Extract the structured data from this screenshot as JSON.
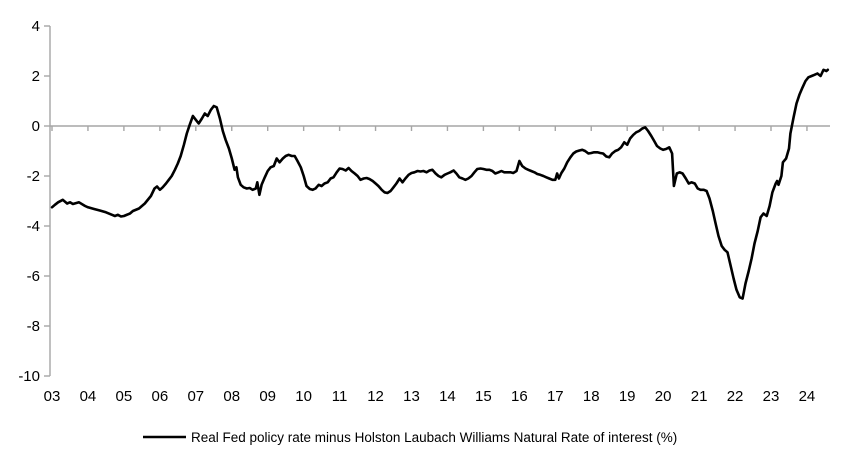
{
  "colors": {
    "background": "#ffffff",
    "axis": "#a6a6a6",
    "line": "#000000",
    "text": "#000000"
  },
  "chart_data": {
    "type": "line",
    "title": "",
    "xlabel": "",
    "ylabel": "",
    "legend": "Real Fed policy rate minus Holston Laubach Williams Natural Rate of interest (%)",
    "legend_position": "bottom-center",
    "grid": "zero-line-only",
    "ylim": [
      -10,
      4
    ],
    "y_ticks": [
      4,
      2,
      0,
      -2,
      -4,
      -6,
      -8,
      -10
    ],
    "x_tick_labels": [
      "03",
      "04",
      "05",
      "06",
      "07",
      "08",
      "09",
      "10",
      "11",
      "12",
      "13",
      "14",
      "15",
      "16",
      "17",
      "18",
      "19",
      "20",
      "21",
      "22",
      "23",
      "24"
    ],
    "x_tick_years": [
      2003,
      2004,
      2005,
      2006,
      2007,
      2008,
      2009,
      2010,
      2011,
      2012,
      2013,
      2014,
      2015,
      2016,
      2017,
      2018,
      2019,
      2020,
      2021,
      2022,
      2023,
      2024
    ],
    "series": [
      {
        "name": "Real Fed policy rate minus Holston Laubach Williams Natural Rate of interest (%)",
        "points": [
          [
            2003.0,
            -3.25
          ],
          [
            2003.08,
            -3.15
          ],
          [
            2003.17,
            -3.05
          ],
          [
            2003.3,
            -2.95
          ],
          [
            2003.42,
            -3.1
          ],
          [
            2003.5,
            -3.05
          ],
          [
            2003.58,
            -3.12
          ],
          [
            2003.75,
            -3.05
          ],
          [
            2003.92,
            -3.2
          ],
          [
            2004.0,
            -3.25
          ],
          [
            2004.17,
            -3.32
          ],
          [
            2004.33,
            -3.38
          ],
          [
            2004.5,
            -3.45
          ],
          [
            2004.67,
            -3.55
          ],
          [
            2004.75,
            -3.6
          ],
          [
            2004.83,
            -3.55
          ],
          [
            2004.92,
            -3.62
          ],
          [
            2005.0,
            -3.6
          ],
          [
            2005.17,
            -3.5
          ],
          [
            2005.25,
            -3.4
          ],
          [
            2005.42,
            -3.3
          ],
          [
            2005.58,
            -3.1
          ],
          [
            2005.75,
            -2.8
          ],
          [
            2005.85,
            -2.5
          ],
          [
            2005.92,
            -2.42
          ],
          [
            2006.0,
            -2.55
          ],
          [
            2006.08,
            -2.45
          ],
          [
            2006.17,
            -2.3
          ],
          [
            2006.25,
            -2.15
          ],
          [
            2006.33,
            -2.0
          ],
          [
            2006.42,
            -1.75
          ],
          [
            2006.5,
            -1.5
          ],
          [
            2006.58,
            -1.2
          ],
          [
            2006.67,
            -0.75
          ],
          [
            2006.75,
            -0.3
          ],
          [
            2006.83,
            0.05
          ],
          [
            2006.92,
            0.4
          ],
          [
            2007.0,
            0.25
          ],
          [
            2007.08,
            0.1
          ],
          [
            2007.17,
            0.3
          ],
          [
            2007.25,
            0.5
          ],
          [
            2007.33,
            0.4
          ],
          [
            2007.42,
            0.65
          ],
          [
            2007.5,
            0.8
          ],
          [
            2007.58,
            0.75
          ],
          [
            2007.67,
            0.3
          ],
          [
            2007.75,
            -0.2
          ],
          [
            2007.83,
            -0.55
          ],
          [
            2007.92,
            -0.9
          ],
          [
            2008.0,
            -1.3
          ],
          [
            2008.08,
            -1.75
          ],
          [
            2008.13,
            -1.65
          ],
          [
            2008.17,
            -2.05
          ],
          [
            2008.25,
            -2.35
          ],
          [
            2008.33,
            -2.45
          ],
          [
            2008.42,
            -2.5
          ],
          [
            2008.5,
            -2.48
          ],
          [
            2008.58,
            -2.55
          ],
          [
            2008.67,
            -2.5
          ],
          [
            2008.71,
            -2.25
          ],
          [
            2008.77,
            -2.75
          ],
          [
            2008.83,
            -2.35
          ],
          [
            2008.92,
            -2.05
          ],
          [
            2009.0,
            -1.8
          ],
          [
            2009.08,
            -1.65
          ],
          [
            2009.17,
            -1.6
          ],
          [
            2009.25,
            -1.3
          ],
          [
            2009.33,
            -1.45
          ],
          [
            2009.42,
            -1.3
          ],
          [
            2009.5,
            -1.2
          ],
          [
            2009.58,
            -1.15
          ],
          [
            2009.67,
            -1.2
          ],
          [
            2009.75,
            -1.2
          ],
          [
            2009.83,
            -1.4
          ],
          [
            2009.92,
            -1.65
          ],
          [
            2010.0,
            -2.0
          ],
          [
            2010.08,
            -2.4
          ],
          [
            2010.17,
            -2.52
          ],
          [
            2010.25,
            -2.55
          ],
          [
            2010.33,
            -2.5
          ],
          [
            2010.42,
            -2.35
          ],
          [
            2010.5,
            -2.4
          ],
          [
            2010.58,
            -2.3
          ],
          [
            2010.67,
            -2.25
          ],
          [
            2010.75,
            -2.1
          ],
          [
            2010.83,
            -2.05
          ],
          [
            2010.92,
            -1.85
          ],
          [
            2011.0,
            -1.7
          ],
          [
            2011.08,
            -1.72
          ],
          [
            2011.17,
            -1.78
          ],
          [
            2011.25,
            -1.68
          ],
          [
            2011.33,
            -1.8
          ],
          [
            2011.42,
            -1.9
          ],
          [
            2011.5,
            -2.0
          ],
          [
            2011.58,
            -2.15
          ],
          [
            2011.67,
            -2.1
          ],
          [
            2011.75,
            -2.08
          ],
          [
            2011.83,
            -2.12
          ],
          [
            2011.92,
            -2.2
          ],
          [
            2012.0,
            -2.3
          ],
          [
            2012.08,
            -2.4
          ],
          [
            2012.17,
            -2.55
          ],
          [
            2012.25,
            -2.65
          ],
          [
            2012.33,
            -2.68
          ],
          [
            2012.42,
            -2.6
          ],
          [
            2012.5,
            -2.45
          ],
          [
            2012.58,
            -2.3
          ],
          [
            2012.67,
            -2.1
          ],
          [
            2012.75,
            -2.25
          ],
          [
            2012.83,
            -2.1
          ],
          [
            2012.92,
            -1.95
          ],
          [
            2013.0,
            -1.88
          ],
          [
            2013.08,
            -1.85
          ],
          [
            2013.17,
            -1.8
          ],
          [
            2013.25,
            -1.82
          ],
          [
            2013.33,
            -1.8
          ],
          [
            2013.42,
            -1.85
          ],
          [
            2013.5,
            -1.78
          ],
          [
            2013.58,
            -1.75
          ],
          [
            2013.67,
            -1.9
          ],
          [
            2013.75,
            -2.0
          ],
          [
            2013.83,
            -2.05
          ],
          [
            2013.92,
            -1.95
          ],
          [
            2014.0,
            -1.9
          ],
          [
            2014.08,
            -1.85
          ],
          [
            2014.17,
            -1.78
          ],
          [
            2014.25,
            -1.9
          ],
          [
            2014.33,
            -2.05
          ],
          [
            2014.42,
            -2.1
          ],
          [
            2014.5,
            -2.15
          ],
          [
            2014.58,
            -2.1
          ],
          [
            2014.67,
            -2.0
          ],
          [
            2014.75,
            -1.85
          ],
          [
            2014.83,
            -1.72
          ],
          [
            2014.92,
            -1.7
          ],
          [
            2015.0,
            -1.72
          ],
          [
            2015.08,
            -1.75
          ],
          [
            2015.17,
            -1.75
          ],
          [
            2015.25,
            -1.8
          ],
          [
            2015.33,
            -1.9
          ],
          [
            2015.42,
            -1.85
          ],
          [
            2015.5,
            -1.8
          ],
          [
            2015.58,
            -1.85
          ],
          [
            2015.67,
            -1.85
          ],
          [
            2015.75,
            -1.85
          ],
          [
            2015.83,
            -1.88
          ],
          [
            2015.92,
            -1.8
          ],
          [
            2016.0,
            -1.4
          ],
          [
            2016.08,
            -1.6
          ],
          [
            2016.17,
            -1.7
          ],
          [
            2016.25,
            -1.75
          ],
          [
            2016.33,
            -1.8
          ],
          [
            2016.42,
            -1.85
          ],
          [
            2016.5,
            -1.92
          ],
          [
            2016.58,
            -1.95
          ],
          [
            2016.67,
            -2.0
          ],
          [
            2016.75,
            -2.05
          ],
          [
            2016.83,
            -2.1
          ],
          [
            2016.92,
            -2.15
          ],
          [
            2017.0,
            -2.15
          ],
          [
            2017.05,
            -1.9
          ],
          [
            2017.1,
            -2.1
          ],
          [
            2017.17,
            -1.88
          ],
          [
            2017.25,
            -1.7
          ],
          [
            2017.33,
            -1.45
          ],
          [
            2017.42,
            -1.25
          ],
          [
            2017.5,
            -1.1
          ],
          [
            2017.58,
            -1.02
          ],
          [
            2017.67,
            -0.98
          ],
          [
            2017.75,
            -0.95
          ],
          [
            2017.83,
            -1.0
          ],
          [
            2017.92,
            -1.1
          ],
          [
            2018.0,
            -1.08
          ],
          [
            2018.08,
            -1.05
          ],
          [
            2018.17,
            -1.05
          ],
          [
            2018.25,
            -1.08
          ],
          [
            2018.33,
            -1.1
          ],
          [
            2018.42,
            -1.22
          ],
          [
            2018.5,
            -1.25
          ],
          [
            2018.58,
            -1.1
          ],
          [
            2018.67,
            -1.0
          ],
          [
            2018.75,
            -0.95
          ],
          [
            2018.83,
            -0.85
          ],
          [
            2018.92,
            -0.65
          ],
          [
            2019.0,
            -0.75
          ],
          [
            2019.08,
            -0.5
          ],
          [
            2019.17,
            -0.35
          ],
          [
            2019.25,
            -0.25
          ],
          [
            2019.33,
            -0.2
          ],
          [
            2019.42,
            -0.1
          ],
          [
            2019.5,
            -0.05
          ],
          [
            2019.58,
            -0.2
          ],
          [
            2019.67,
            -0.4
          ],
          [
            2019.75,
            -0.6
          ],
          [
            2019.83,
            -0.8
          ],
          [
            2019.92,
            -0.9
          ],
          [
            2020.0,
            -0.95
          ],
          [
            2020.08,
            -0.92
          ],
          [
            2020.17,
            -0.85
          ],
          [
            2020.25,
            -1.1
          ],
          [
            2020.3,
            -2.4
          ],
          [
            2020.38,
            -1.9
          ],
          [
            2020.46,
            -1.85
          ],
          [
            2020.54,
            -1.9
          ],
          [
            2020.63,
            -2.1
          ],
          [
            2020.71,
            -2.3
          ],
          [
            2020.79,
            -2.25
          ],
          [
            2020.88,
            -2.3
          ],
          [
            2020.96,
            -2.5
          ],
          [
            2021.04,
            -2.55
          ],
          [
            2021.13,
            -2.55
          ],
          [
            2021.21,
            -2.6
          ],
          [
            2021.29,
            -2.9
          ],
          [
            2021.38,
            -3.4
          ],
          [
            2021.46,
            -3.9
          ],
          [
            2021.54,
            -4.4
          ],
          [
            2021.63,
            -4.8
          ],
          [
            2021.71,
            -4.95
          ],
          [
            2021.79,
            -5.05
          ],
          [
            2021.88,
            -5.6
          ],
          [
            2021.96,
            -6.1
          ],
          [
            2022.04,
            -6.55
          ],
          [
            2022.13,
            -6.85
          ],
          [
            2022.21,
            -6.9
          ],
          [
            2022.29,
            -6.3
          ],
          [
            2022.38,
            -5.8
          ],
          [
            2022.46,
            -5.3
          ],
          [
            2022.54,
            -4.7
          ],
          [
            2022.63,
            -4.2
          ],
          [
            2022.71,
            -3.65
          ],
          [
            2022.79,
            -3.5
          ],
          [
            2022.88,
            -3.6
          ],
          [
            2022.96,
            -3.2
          ],
          [
            2023.04,
            -2.65
          ],
          [
            2023.13,
            -2.3
          ],
          [
            2023.17,
            -2.2
          ],
          [
            2023.21,
            -2.35
          ],
          [
            2023.29,
            -2.0
          ],
          [
            2023.33,
            -1.45
          ],
          [
            2023.42,
            -1.3
          ],
          [
            2023.5,
            -0.9
          ],
          [
            2023.54,
            -0.3
          ],
          [
            2023.63,
            0.35
          ],
          [
            2023.71,
            0.9
          ],
          [
            2023.79,
            1.25
          ],
          [
            2023.88,
            1.55
          ],
          [
            2023.96,
            1.8
          ],
          [
            2024.04,
            1.95
          ],
          [
            2024.13,
            2.0
          ],
          [
            2024.21,
            2.05
          ],
          [
            2024.29,
            2.1
          ],
          [
            2024.38,
            2.0
          ],
          [
            2024.46,
            2.25
          ],
          [
            2024.54,
            2.2
          ],
          [
            2024.58,
            2.25
          ]
        ]
      }
    ]
  }
}
